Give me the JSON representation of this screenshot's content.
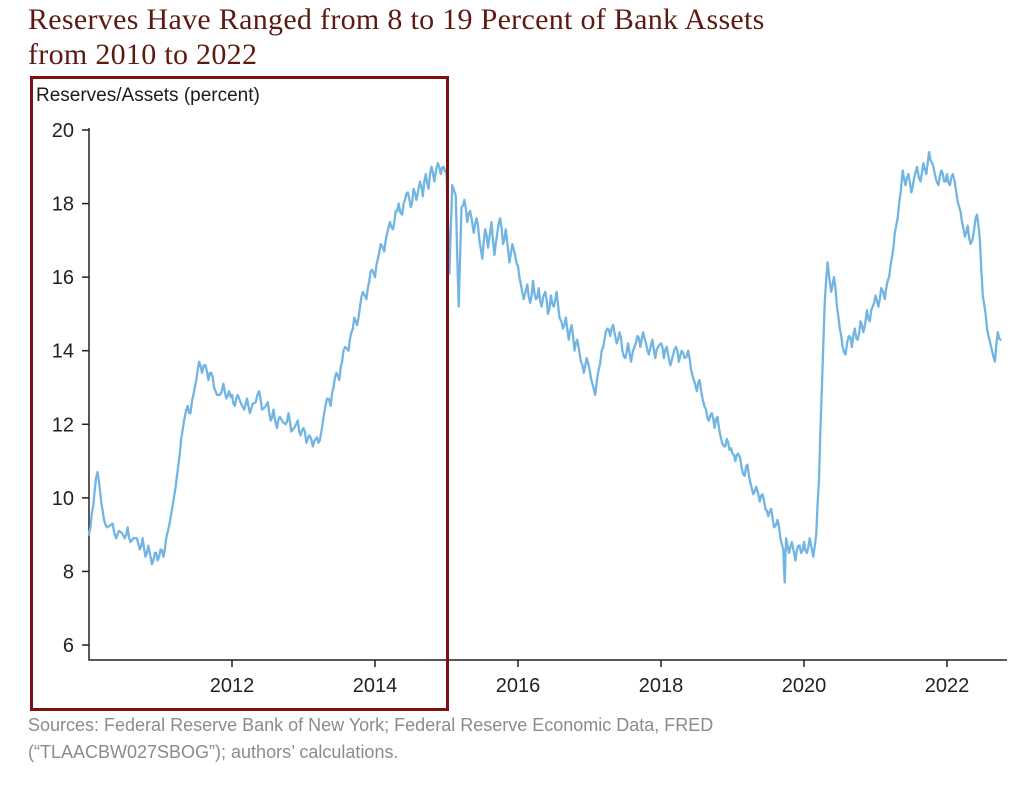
{
  "chart_data": {
    "type": "line",
    "title": "Reserves Have Ranged from 8 to 19 Percent of Bank Assets from 2010 to 2022",
    "title_lines": [
      "Reserves Have Ranged from 8 to 19 Percent of Bank Assets",
      "from 2010 to 2022"
    ],
    "axis_label": "Reserves/Assets (percent)",
    "xlabel": "",
    "ylabel": "Reserves/Assets (percent)",
    "x_ticks": [
      2012,
      2014,
      2016,
      2018,
      2020,
      2022
    ],
    "y_ticks": [
      6,
      8,
      10,
      12,
      14,
      16,
      18,
      20
    ],
    "xlim": [
      2010,
      2022.85
    ],
    "ylim": [
      6,
      20
    ],
    "grid": false,
    "legend": "none",
    "series": [
      {
        "name": "Reserves/Assets (percent)",
        "color": "#72b5e3",
        "points": [
          [
            2010.0,
            9.0
          ],
          [
            2010.04,
            9.6
          ],
          [
            2010.08,
            10.2
          ],
          [
            2010.12,
            10.7
          ],
          [
            2010.17,
            9.9
          ],
          [
            2010.21,
            9.4
          ],
          [
            2010.25,
            9.2
          ],
          [
            2010.33,
            9.3
          ],
          [
            2010.38,
            8.9
          ],
          [
            2010.42,
            9.1
          ],
          [
            2010.5,
            8.9
          ],
          [
            2010.54,
            9.2
          ],
          [
            2010.58,
            8.8
          ],
          [
            2010.67,
            8.9
          ],
          [
            2010.71,
            8.6
          ],
          [
            2010.75,
            8.9
          ],
          [
            2010.79,
            8.4
          ],
          [
            2010.83,
            8.7
          ],
          [
            2010.88,
            8.2
          ],
          [
            2010.92,
            8.5
          ],
          [
            2010.96,
            8.3
          ],
          [
            2011.0,
            8.6
          ],
          [
            2011.04,
            8.4
          ],
          [
            2011.08,
            8.9
          ],
          [
            2011.17,
            9.8
          ],
          [
            2011.25,
            10.9
          ],
          [
            2011.29,
            11.6
          ],
          [
            2011.33,
            12.1
          ],
          [
            2011.38,
            12.5
          ],
          [
            2011.42,
            12.3
          ],
          [
            2011.46,
            12.8
          ],
          [
            2011.5,
            13.2
          ],
          [
            2011.54,
            13.7
          ],
          [
            2011.58,
            13.4
          ],
          [
            2011.63,
            13.6
          ],
          [
            2011.67,
            13.2
          ],
          [
            2011.71,
            13.4
          ],
          [
            2011.75,
            13.0
          ],
          [
            2011.83,
            12.8
          ],
          [
            2011.88,
            13.1
          ],
          [
            2011.92,
            12.7
          ],
          [
            2011.96,
            12.9
          ],
          [
            2012.0,
            12.8
          ],
          [
            2012.04,
            12.5
          ],
          [
            2012.08,
            12.8
          ],
          [
            2012.17,
            12.4
          ],
          [
            2012.21,
            12.7
          ],
          [
            2012.25,
            12.3
          ],
          [
            2012.33,
            12.6
          ],
          [
            2012.38,
            12.9
          ],
          [
            2012.42,
            12.4
          ],
          [
            2012.5,
            12.6
          ],
          [
            2012.54,
            12.1
          ],
          [
            2012.58,
            12.4
          ],
          [
            2012.63,
            11.9
          ],
          [
            2012.67,
            12.2
          ],
          [
            2012.75,
            12.0
          ],
          [
            2012.79,
            12.3
          ],
          [
            2012.83,
            11.8
          ],
          [
            2012.92,
            12.1
          ],
          [
            2012.96,
            11.7
          ],
          [
            2013.0,
            11.9
          ],
          [
            2013.04,
            11.5
          ],
          [
            2013.08,
            11.7
          ],
          [
            2013.13,
            11.4
          ],
          [
            2013.17,
            11.6
          ],
          [
            2013.21,
            11.5
          ],
          [
            2013.25,
            11.8
          ],
          [
            2013.29,
            12.3
          ],
          [
            2013.33,
            12.7
          ],
          [
            2013.38,
            12.5
          ],
          [
            2013.42,
            13.0
          ],
          [
            2013.46,
            13.4
          ],
          [
            2013.5,
            13.2
          ],
          [
            2013.54,
            13.7
          ],
          [
            2013.58,
            14.1
          ],
          [
            2013.63,
            14.0
          ],
          [
            2013.67,
            14.5
          ],
          [
            2013.71,
            14.9
          ],
          [
            2013.75,
            14.7
          ],
          [
            2013.79,
            15.2
          ],
          [
            2013.83,
            15.6
          ],
          [
            2013.88,
            15.4
          ],
          [
            2013.92,
            15.9
          ],
          [
            2013.96,
            16.2
          ],
          [
            2014.0,
            16.0
          ],
          [
            2014.04,
            16.5
          ],
          [
            2014.08,
            16.9
          ],
          [
            2014.13,
            16.7
          ],
          [
            2014.17,
            17.2
          ],
          [
            2014.21,
            17.5
          ],
          [
            2014.25,
            17.3
          ],
          [
            2014.29,
            17.8
          ],
          [
            2014.33,
            18.0
          ],
          [
            2014.38,
            17.7
          ],
          [
            2014.42,
            18.1
          ],
          [
            2014.46,
            18.3
          ],
          [
            2014.5,
            17.9
          ],
          [
            2014.54,
            18.4
          ],
          [
            2014.58,
            18.1
          ],
          [
            2014.63,
            18.6
          ],
          [
            2014.67,
            18.2
          ],
          [
            2014.71,
            18.8
          ],
          [
            2014.75,
            18.4
          ],
          [
            2014.79,
            19.0
          ],
          [
            2014.83,
            18.6
          ],
          [
            2014.88,
            19.1
          ],
          [
            2014.92,
            18.8
          ],
          [
            2014.96,
            19.0
          ],
          [
            2015.0,
            18.9
          ],
          [
            2015.04,
            16.1
          ],
          [
            2015.08,
            18.5
          ],
          [
            2015.13,
            18.2
          ],
          [
            2015.17,
            15.2
          ],
          [
            2015.21,
            17.9
          ],
          [
            2015.25,
            18.1
          ],
          [
            2015.29,
            17.5
          ],
          [
            2015.33,
            17.8
          ],
          [
            2015.38,
            17.2
          ],
          [
            2015.42,
            17.6
          ],
          [
            2015.46,
            17.0
          ],
          [
            2015.5,
            16.5
          ],
          [
            2015.54,
            17.3
          ],
          [
            2015.58,
            16.8
          ],
          [
            2015.63,
            17.5
          ],
          [
            2015.67,
            16.6
          ],
          [
            2015.71,
            17.2
          ],
          [
            2015.75,
            17.6
          ],
          [
            2015.79,
            16.9
          ],
          [
            2015.83,
            17.3
          ],
          [
            2015.88,
            16.4
          ],
          [
            2015.92,
            16.9
          ],
          [
            2015.96,
            16.6
          ],
          [
            2016.0,
            16.3
          ],
          [
            2016.04,
            15.8
          ],
          [
            2016.08,
            15.4
          ],
          [
            2016.13,
            15.8
          ],
          [
            2016.17,
            15.3
          ],
          [
            2016.21,
            15.9
          ],
          [
            2016.25,
            15.4
          ],
          [
            2016.29,
            15.7
          ],
          [
            2016.33,
            15.2
          ],
          [
            2016.38,
            15.6
          ],
          [
            2016.42,
            15.0
          ],
          [
            2016.46,
            15.5
          ],
          [
            2016.5,
            15.2
          ],
          [
            2016.54,
            15.6
          ],
          [
            2016.58,
            14.9
          ],
          [
            2016.63,
            14.6
          ],
          [
            2016.67,
            14.9
          ],
          [
            2016.71,
            14.3
          ],
          [
            2016.75,
            14.7
          ],
          [
            2016.79,
            14.0
          ],
          [
            2016.83,
            14.3
          ],
          [
            2016.88,
            13.7
          ],
          [
            2016.92,
            13.4
          ],
          [
            2016.96,
            13.8
          ],
          [
            2017.0,
            13.5
          ],
          [
            2017.04,
            13.1
          ],
          [
            2017.08,
            12.8
          ],
          [
            2017.13,
            13.5
          ],
          [
            2017.17,
            14.0
          ],
          [
            2017.21,
            14.3
          ],
          [
            2017.25,
            14.6
          ],
          [
            2017.29,
            14.4
          ],
          [
            2017.33,
            14.7
          ],
          [
            2017.38,
            14.2
          ],
          [
            2017.42,
            14.5
          ],
          [
            2017.46,
            14.0
          ],
          [
            2017.5,
            13.8
          ],
          [
            2017.54,
            14.2
          ],
          [
            2017.58,
            13.7
          ],
          [
            2017.63,
            14.1
          ],
          [
            2017.67,
            14.4
          ],
          [
            2017.71,
            14.1
          ],
          [
            2017.75,
            14.5
          ],
          [
            2017.79,
            14.2
          ],
          [
            2017.83,
            13.9
          ],
          [
            2017.88,
            14.3
          ],
          [
            2017.92,
            13.8
          ],
          [
            2017.96,
            14.1
          ],
          [
            2018.0,
            14.2
          ],
          [
            2018.04,
            13.8
          ],
          [
            2018.08,
            14.1
          ],
          [
            2018.13,
            13.6
          ],
          [
            2018.17,
            13.9
          ],
          [
            2018.21,
            14.1
          ],
          [
            2018.25,
            13.7
          ],
          [
            2018.29,
            14.0
          ],
          [
            2018.33,
            13.8
          ],
          [
            2018.38,
            14.0
          ],
          [
            2018.42,
            13.5
          ],
          [
            2018.46,
            13.2
          ],
          [
            2018.5,
            12.9
          ],
          [
            2018.54,
            13.2
          ],
          [
            2018.58,
            12.7
          ],
          [
            2018.63,
            12.4
          ],
          [
            2018.67,
            12.1
          ],
          [
            2018.71,
            12.3
          ],
          [
            2018.75,
            11.9
          ],
          [
            2018.79,
            12.2
          ],
          [
            2018.83,
            11.7
          ],
          [
            2018.88,
            11.4
          ],
          [
            2018.92,
            11.6
          ],
          [
            2018.96,
            11.3
          ],
          [
            2019.0,
            11.2
          ],
          [
            2019.04,
            11.0
          ],
          [
            2019.08,
            11.2
          ],
          [
            2019.13,
            10.8
          ],
          [
            2019.17,
            10.6
          ],
          [
            2019.21,
            10.9
          ],
          [
            2019.25,
            10.4
          ],
          [
            2019.29,
            10.1
          ],
          [
            2019.33,
            10.3
          ],
          [
            2019.38,
            9.9
          ],
          [
            2019.42,
            10.1
          ],
          [
            2019.46,
            9.7
          ],
          [
            2019.5,
            9.5
          ],
          [
            2019.54,
            9.7
          ],
          [
            2019.58,
            9.2
          ],
          [
            2019.63,
            9.4
          ],
          [
            2019.67,
            8.9
          ],
          [
            2019.71,
            8.6
          ],
          [
            2019.73,
            7.7
          ],
          [
            2019.75,
            8.9
          ],
          [
            2019.79,
            8.5
          ],
          [
            2019.83,
            8.8
          ],
          [
            2019.88,
            8.3
          ],
          [
            2019.92,
            8.7
          ],
          [
            2019.96,
            8.5
          ],
          [
            2020.0,
            8.8
          ],
          [
            2020.04,
            8.5
          ],
          [
            2020.08,
            8.9
          ],
          [
            2020.13,
            8.4
          ],
          [
            2020.17,
            9.0
          ],
          [
            2020.21,
            10.5
          ],
          [
            2020.25,
            13.0
          ],
          [
            2020.29,
            15.3
          ],
          [
            2020.33,
            16.4
          ],
          [
            2020.38,
            15.6
          ],
          [
            2020.42,
            16.0
          ],
          [
            2020.46,
            15.2
          ],
          [
            2020.5,
            14.6
          ],
          [
            2020.54,
            14.1
          ],
          [
            2020.58,
            13.9
          ],
          [
            2020.63,
            14.4
          ],
          [
            2020.67,
            14.1
          ],
          [
            2020.71,
            14.6
          ],
          [
            2020.75,
            14.3
          ],
          [
            2020.79,
            14.8
          ],
          [
            2020.83,
            14.5
          ],
          [
            2020.88,
            15.1
          ],
          [
            2020.92,
            14.8
          ],
          [
            2020.96,
            15.2
          ],
          [
            2021.0,
            15.5
          ],
          [
            2021.04,
            15.2
          ],
          [
            2021.08,
            15.7
          ],
          [
            2021.13,
            15.4
          ],
          [
            2021.17,
            15.9
          ],
          [
            2021.21,
            16.3
          ],
          [
            2021.25,
            16.8
          ],
          [
            2021.29,
            17.4
          ],
          [
            2021.33,
            18.0
          ],
          [
            2021.38,
            18.9
          ],
          [
            2021.42,
            18.5
          ],
          [
            2021.46,
            18.8
          ],
          [
            2021.5,
            18.3
          ],
          [
            2021.54,
            18.7
          ],
          [
            2021.58,
            19.0
          ],
          [
            2021.63,
            18.6
          ],
          [
            2021.67,
            19.1
          ],
          [
            2021.71,
            18.8
          ],
          [
            2021.75,
            19.4
          ],
          [
            2021.79,
            19.1
          ],
          [
            2021.83,
            18.8
          ],
          [
            2021.88,
            18.5
          ],
          [
            2021.92,
            18.9
          ],
          [
            2021.96,
            18.6
          ],
          [
            2022.0,
            18.8
          ],
          [
            2022.04,
            18.5
          ],
          [
            2022.08,
            18.8
          ],
          [
            2022.13,
            18.3
          ],
          [
            2022.17,
            17.9
          ],
          [
            2022.21,
            17.5
          ],
          [
            2022.25,
            17.1
          ],
          [
            2022.29,
            17.4
          ],
          [
            2022.33,
            16.9
          ],
          [
            2022.38,
            17.3
          ],
          [
            2022.42,
            17.7
          ],
          [
            2022.46,
            17.0
          ],
          [
            2022.5,
            15.5
          ],
          [
            2022.54,
            15.0
          ],
          [
            2022.58,
            14.4
          ],
          [
            2022.63,
            14.0
          ],
          [
            2022.67,
            13.7
          ],
          [
            2022.71,
            14.5
          ],
          [
            2022.75,
            14.3
          ]
        ]
      }
    ],
    "annotation": {
      "kind": "highlight-rectangle",
      "covers_years_approx": [
        2010,
        2015
      ],
      "color": "#7a1113"
    }
  },
  "sources": {
    "lines": [
      "Sources: Federal Reserve Bank of New York; Federal Reserve Economic Data, FRED",
      "(“TLAACBW027SBOG”); authors’ calculations."
    ]
  },
  "colors": {
    "title": "#5d1a13",
    "line": "#72b5e3",
    "highlight_box": "#7a1113",
    "axis": "#231f20",
    "source_text": "#8b8b8b"
  }
}
